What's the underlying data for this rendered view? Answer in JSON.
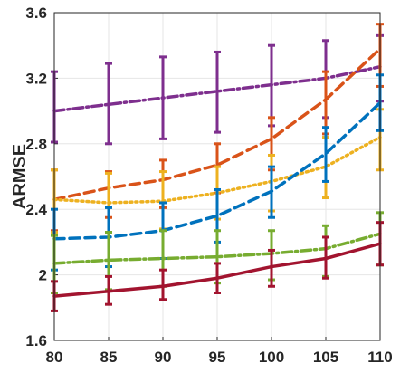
{
  "chart_data": {
    "type": "line",
    "title": "",
    "xlabel": "",
    "ylabel": "ARMSE",
    "x": [
      80,
      85,
      90,
      95,
      100,
      105,
      110
    ],
    "xlim": [
      80,
      110
    ],
    "ylim": [
      1.6,
      3.6
    ],
    "xticks": [
      "80",
      "85",
      "90",
      "95",
      "100",
      "105",
      "110"
    ],
    "yticks": [
      "1.6",
      "2",
      "2.4",
      "2.8",
      "3.2",
      "3.6"
    ],
    "grid": true,
    "legend": "none",
    "series": [
      {
        "color": "#7E2F8E",
        "style": "dash-dot",
        "values": [
          3.0,
          3.04,
          3.08,
          3.12,
          3.16,
          3.2,
          3.27
        ],
        "err_low": [
          2.81,
          2.8,
          2.83,
          2.87,
          2.91,
          2.96,
          3.06
        ],
        "err_high": [
          3.24,
          3.29,
          3.33,
          3.36,
          3.4,
          3.43,
          3.46
        ]
      },
      {
        "color": "#D95319",
        "style": "dashed",
        "values": [
          2.46,
          2.53,
          2.58,
          2.67,
          2.83,
          3.07,
          3.38
        ],
        "err_low": [
          2.27,
          2.35,
          2.41,
          2.5,
          2.64,
          2.86,
          3.15
        ],
        "err_high": [
          2.64,
          2.63,
          2.7,
          2.8,
          2.96,
          3.24,
          3.53
        ]
      },
      {
        "color": "#EDB120",
        "style": "dotted",
        "values": [
          2.46,
          2.44,
          2.45,
          2.5,
          2.57,
          2.66,
          2.84
        ],
        "err_low": [
          2.26,
          2.26,
          2.28,
          2.34,
          2.39,
          2.47,
          2.64
        ],
        "err_high": [
          2.64,
          2.62,
          2.63,
          2.66,
          2.73,
          2.84,
          3.01
        ]
      },
      {
        "color": "#0072BD",
        "style": "dashed",
        "values": [
          2.22,
          2.23,
          2.27,
          2.36,
          2.51,
          2.74,
          3.05
        ],
        "err_low": [
          2.03,
          2.05,
          2.1,
          2.2,
          2.35,
          2.57,
          2.88
        ],
        "err_high": [
          2.4,
          2.41,
          2.44,
          2.52,
          2.66,
          2.9,
          3.22
        ]
      },
      {
        "color": "#77AC30",
        "style": "dash-dot",
        "values": [
          2.07,
          2.09,
          2.1,
          2.11,
          2.13,
          2.16,
          2.25
        ],
        "err_low": [
          1.89,
          1.91,
          1.93,
          1.95,
          1.97,
          1.99,
          2.06
        ],
        "err_high": [
          2.24,
          2.26,
          2.27,
          2.27,
          2.27,
          2.3,
          2.38
        ]
      },
      {
        "color": "#A2142F",
        "style": "solid",
        "values": [
          1.87,
          1.9,
          1.93,
          1.98,
          2.05,
          2.1,
          2.19
        ],
        "err_low": [
          1.78,
          1.82,
          1.85,
          1.89,
          1.93,
          1.98,
          2.06
        ],
        "err_high": [
          1.96,
          1.99,
          2.03,
          2.07,
          2.15,
          2.23,
          2.32
        ]
      }
    ]
  }
}
